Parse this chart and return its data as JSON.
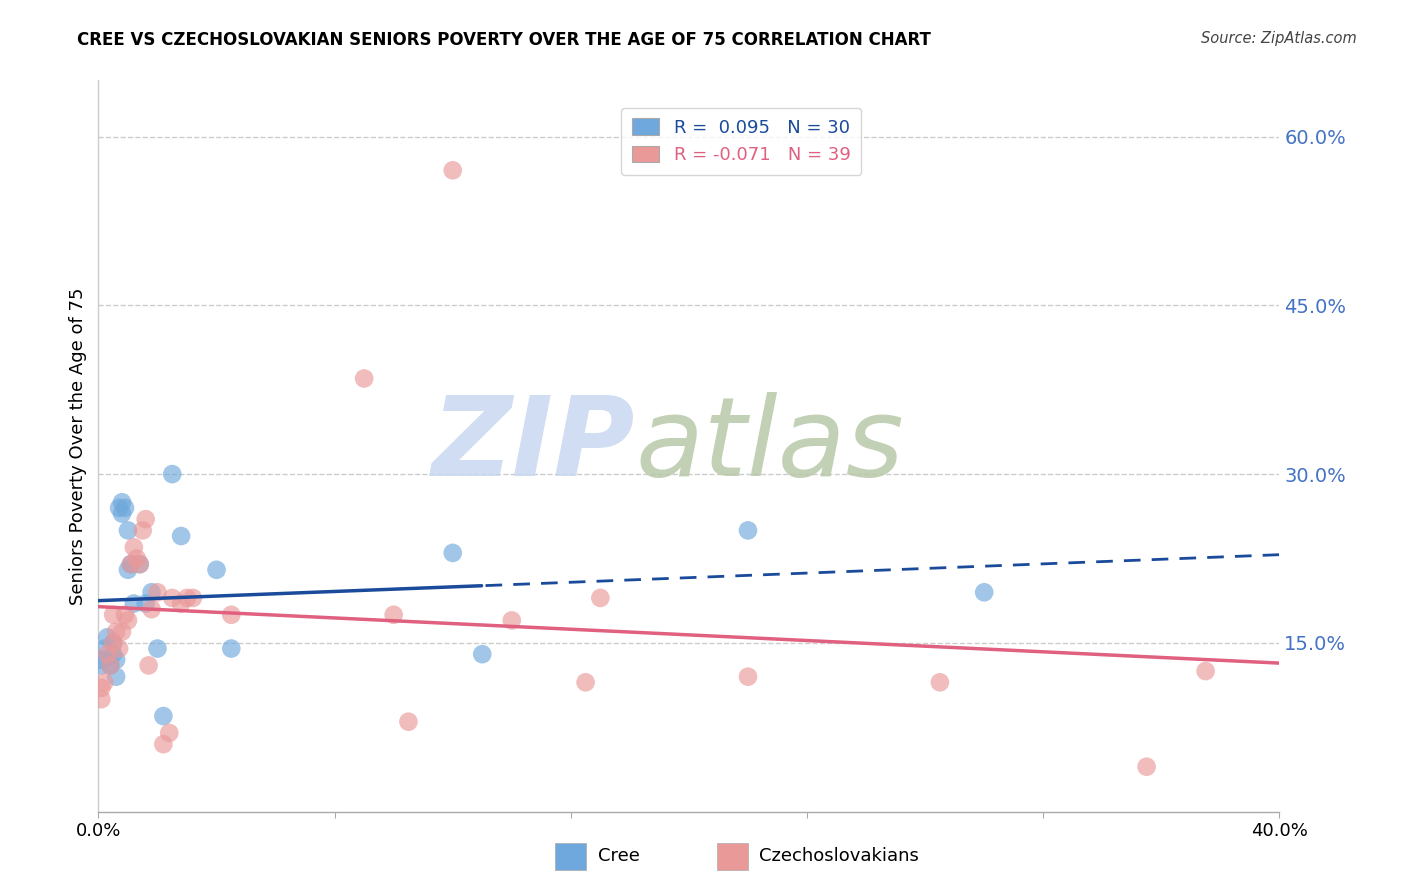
{
  "title": "CREE VS CZECHOSLOVAKIAN SENIORS POVERTY OVER THE AGE OF 75 CORRELATION CHART",
  "source": "Source: ZipAtlas.com",
  "ylabel": "Seniors Poverty Over the Age of 75",
  "xmin": 0.0,
  "xmax": 0.4,
  "ymin": 0.0,
  "ymax": 0.65,
  "yticks": [
    0.15,
    0.3,
    0.45,
    0.6
  ],
  "ytick_labels": [
    "15.0%",
    "30.0%",
    "45.0%",
    "60.0%"
  ],
  "xticks": [
    0.0,
    0.08,
    0.16,
    0.24,
    0.32,
    0.4
  ],
  "xtick_labels": [
    "0.0%",
    "",
    "",
    "",
    "",
    "40.0%"
  ],
  "legend_cree": "R =  0.095   N = 30",
  "legend_czech": "R = -0.071   N = 39",
  "cree_color": "#6fa8dc",
  "czech_color": "#ea9999",
  "cree_line_color": "#1a4a9a",
  "czech_line_color": "#e06080",
  "cree_x": [
    0.001,
    0.002,
    0.003,
    0.004,
    0.005,
    0.005,
    0.006,
    0.006,
    0.007,
    0.008,
    0.008,
    0.009,
    0.01,
    0.01,
    0.011,
    0.012,
    0.014,
    0.016,
    0.018,
    0.02,
    0.022,
    0.025,
    0.028,
    0.04,
    0.045,
    0.12,
    0.13,
    0.22,
    0.3,
    0.001
  ],
  "cree_y": [
    0.135,
    0.145,
    0.155,
    0.13,
    0.14,
    0.15,
    0.12,
    0.135,
    0.27,
    0.265,
    0.275,
    0.27,
    0.25,
    0.215,
    0.22,
    0.185,
    0.22,
    0.185,
    0.195,
    0.145,
    0.085,
    0.3,
    0.245,
    0.215,
    0.145,
    0.23,
    0.14,
    0.25,
    0.195,
    0.13
  ],
  "czech_x": [
    0.001,
    0.002,
    0.003,
    0.004,
    0.005,
    0.005,
    0.006,
    0.007,
    0.008,
    0.009,
    0.01,
    0.011,
    0.012,
    0.013,
    0.014,
    0.015,
    0.016,
    0.017,
    0.018,
    0.02,
    0.022,
    0.024,
    0.025,
    0.028,
    0.03,
    0.032,
    0.045,
    0.09,
    0.1,
    0.105,
    0.12,
    0.14,
    0.165,
    0.17,
    0.22,
    0.285,
    0.355,
    0.375,
    0.001
  ],
  "czech_y": [
    0.1,
    0.115,
    0.14,
    0.13,
    0.15,
    0.175,
    0.16,
    0.145,
    0.16,
    0.175,
    0.17,
    0.22,
    0.235,
    0.225,
    0.22,
    0.25,
    0.26,
    0.13,
    0.18,
    0.195,
    0.06,
    0.07,
    0.19,
    0.185,
    0.19,
    0.19,
    0.175,
    0.385,
    0.175,
    0.08,
    0.57,
    0.17,
    0.115,
    0.19,
    0.12,
    0.115,
    0.04,
    0.125,
    0.11
  ],
  "cree_line_solid_end": 0.13,
  "watermark_zip_color": "#c8d8f0",
  "watermark_atlas_color": "#b8c8a8"
}
